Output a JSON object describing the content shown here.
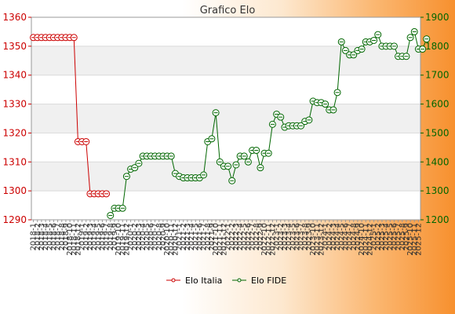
{
  "chart_data": {
    "type": "line",
    "title": "Grafico Elo",
    "colors": {
      "italia": "#cc0000",
      "fide": "#006600",
      "left_axis": "#cc0000",
      "right_axis": "#006600"
    },
    "left_axis": {
      "ylim": [
        1290,
        1360
      ],
      "ticks": [
        1290,
        1300,
        1310,
        1320,
        1330,
        1340,
        1350,
        1360
      ]
    },
    "right_axis": {
      "ylim": [
        1200,
        1900
      ],
      "ticks": [
        1200,
        1300,
        1400,
        1500,
        1600,
        1700,
        1800,
        1900
      ]
    },
    "legend_position": "bottom-center",
    "grid": true,
    "x_tick_labels": [
      "2018-1",
      "2018-2",
      "2018-3",
      "2018-4",
      "2018-5",
      "2018-6",
      "2018-7",
      "2018-8",
      "2018-9",
      "2018-10",
      "2018-11",
      "2018-12",
      "2019-1",
      "2019-2",
      "2019-3",
      "2019-4",
      "2019-5",
      "2019-6",
      "2019-7",
      "2019-8",
      "2019-9",
      "2019-10",
      "2019-11",
      "2019-12",
      "2020-1",
      "2020-2",
      "2020-3",
      "2020-4",
      "2020-5",
      "2020-6",
      "2020-7",
      "2020-8",
      "2020-9",
      "2020-10",
      "2020-11",
      "2020-12",
      "2021-1",
      "2021-2",
      "2021-3",
      "2021-4",
      "2021-5",
      "2021-6",
      "2021-7",
      "2021-8",
      "2021-9",
      "2021-10",
      "2021-11",
      "2021-12",
      "2022-1",
      "2022-2",
      "2022-3",
      "2022-4",
      "2022-5",
      "2022-6",
      "2022-7",
      "2022-8",
      "2022-9",
      "2022-10",
      "2022-11",
      "2022-12",
      "2023-1",
      "2023-2",
      "2023-3",
      "2023-4",
      "2023-5",
      "2023-6",
      "2023-7",
      "2023-8",
      "2023-9",
      "2023-10",
      "2023-11",
      "2023-12",
      "2024-1",
      "2024-2",
      "2024-3",
      "2024-4",
      "2024-5",
      "2024-6",
      "2024-7",
      "2024-8",
      "2024-9",
      "2024-10",
      "2024-11",
      "2024-12",
      "2025-1",
      "2025-2",
      "2025-3",
      "2025-4",
      "2025-5",
      "2025-6",
      "2025-7",
      "2025-8",
      "2025-9",
      "2025-10",
      "2025-11",
      "2025-12"
    ],
    "series": [
      {
        "name": "Elo Italia",
        "axis": "left",
        "start_index": 0,
        "values": [
          1353,
          1353,
          1353,
          1353,
          1353,
          1353,
          1353,
          1353,
          1353,
          1353,
          1353,
          1317,
          1317,
          1317,
          1299,
          1299,
          1299,
          1299,
          1299
        ]
      },
      {
        "name": "Elo FIDE",
        "axis": "right",
        "start_index": 19,
        "values": [
          1215,
          1240,
          1240,
          1240,
          1350,
          1375,
          1380,
          1395,
          1420,
          1420,
          1420,
          1420,
          1420,
          1420,
          1420,
          1420,
          1360,
          1350,
          1345,
          1345,
          1345,
          1345,
          1345,
          1355,
          1470,
          1480,
          1570,
          1400,
          1385,
          1385,
          1335,
          1390,
          1420,
          1420,
          1400,
          1440,
          1440,
          1380,
          1430,
          1430,
          1530,
          1565,
          1555,
          1520,
          1525,
          1525,
          1525,
          1525,
          1540,
          1545,
          1610,
          1605,
          1605,
          1600,
          1580,
          1580,
          1640,
          1815,
          1785,
          1770,
          1770,
          1785,
          1790,
          1815,
          1815,
          1820,
          1840,
          1800,
          1800,
          1800,
          1800,
          1765,
          1765,
          1765,
          1830,
          1850,
          1790,
          1790,
          1825
        ]
      }
    ]
  }
}
